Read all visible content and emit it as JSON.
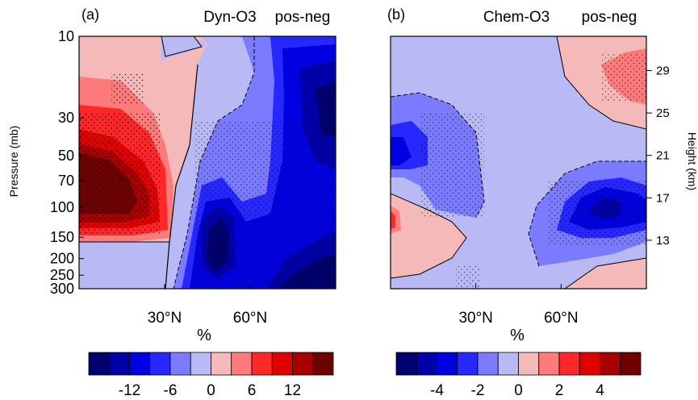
{
  "chart_data": [
    {
      "type": "heatmap",
      "panel_label": "(a)",
      "title": "Dyn-O3",
      "subtitle": "pos-neg",
      "ylabel": "Pressure (mb)",
      "xticks": [
        "30°N",
        "60°N"
      ],
      "xtick_values": [
        30,
        60
      ],
      "xlim": [
        0,
        90
      ],
      "yscale": "log",
      "ylim": [
        300,
        10
      ],
      "yticks": [
        "10",
        "30",
        "50",
        "70",
        "100",
        "150",
        "200",
        "250",
        "300"
      ],
      "ytick_values": [
        10,
        30,
        50,
        70,
        100,
        150,
        200,
        250,
        300
      ],
      "colorbar": {
        "label": "%",
        "tick_labels": [
          "-12",
          "-6",
          "0",
          "6",
          "12"
        ],
        "tick_values": [
          -12,
          -6,
          0,
          6,
          12
        ],
        "bin_edges": [
          -15,
          -12,
          -9,
          -6,
          -3,
          0,
          3,
          6,
          9,
          12,
          15
        ],
        "colors": [
          "#00006e",
          "#0000a8",
          "#0000e0",
          "#2727ff",
          "#7b7bff",
          "#b9b9f5",
          "#f5b9b9",
          "#ff7b7b",
          "#ff2727",
          "#e00000",
          "#a80000",
          "#6e0000"
        ]
      },
      "contour_regions": [
        {
          "lat": [
            0,
            28
          ],
          "p": [
            300,
            160
          ],
          "value": -3
        },
        {
          "lat": [
            0,
            30
          ],
          "p": [
            150,
            30
          ],
          "value": 10
        },
        {
          "lat": [
            0,
            20
          ],
          "p": [
            100,
            50
          ],
          "value": 15
        },
        {
          "lat": [
            0,
            30
          ],
          "p": [
            30,
            10
          ],
          "value": 3
        },
        {
          "lat": [
            30,
            48
          ],
          "p": [
            300,
            10
          ],
          "value": -2
        },
        {
          "lat": [
            40,
            55
          ],
          "p": [
            300,
            100
          ],
          "value": -13
        },
        {
          "lat": [
            60,
            90
          ],
          "p": [
            300,
            150
          ],
          "value": -12
        },
        {
          "lat": [
            70,
            90
          ],
          "p": [
            50,
            10
          ],
          "value": -12
        }
      ]
    },
    {
      "type": "heatmap",
      "panel_label": "(b)",
      "title": "Chem-O3",
      "subtitle": "pos-neg",
      "ylabel": "Height (km)",
      "xticks": [
        "30°N",
        "60°N"
      ],
      "xtick_values": [
        30,
        60
      ],
      "xlim": [
        0,
        90
      ],
      "y2ticks": [
        "29",
        "25",
        "21",
        "17",
        "13"
      ],
      "y2tick_values": [
        29,
        25,
        21,
        17,
        13
      ],
      "colorbar": {
        "label": "%",
        "tick_labels": [
          "-4",
          "-2",
          "0",
          "2",
          "4"
        ],
        "tick_values": [
          -4,
          -2,
          0,
          2,
          4
        ],
        "bin_edges": [
          -5,
          -4,
          -3,
          -2,
          -1,
          0,
          1,
          2,
          3,
          4,
          5
        ],
        "colors": [
          "#00006e",
          "#0000a8",
          "#0000e0",
          "#2727ff",
          "#7b7bff",
          "#b9b9f5",
          "#f5b9b9",
          "#ff7b7b",
          "#ff2727",
          "#e00000",
          "#a80000",
          "#6e0000"
        ]
      },
      "contour_regions": [
        {
          "lat": [
            0,
            90
          ],
          "p": [
            300,
            10
          ],
          "value": -0.5
        },
        {
          "lat": [
            0,
            25
          ],
          "p": [
            70,
            20
          ],
          "value": -1.5
        },
        {
          "lat": [
            0,
            8
          ],
          "p": [
            50,
            35
          ],
          "value": -2.5
        },
        {
          "lat": [
            55,
            90
          ],
          "p": [
            200,
            60
          ],
          "value": -1.5
        },
        {
          "lat": [
            65,
            88
          ],
          "p": [
            150,
            70
          ],
          "value": -3
        },
        {
          "lat": [
            70,
            90
          ],
          "p": [
            30,
            10
          ],
          "value": 1
        },
        {
          "lat": [
            82,
            90
          ],
          "p": [
            30,
            15
          ],
          "value": 2
        },
        {
          "lat": [
            0,
            30
          ],
          "p": [
            250,
            100
          ],
          "value": 1
        },
        {
          "lat": [
            0,
            3
          ],
          "p": [
            150,
            100
          ],
          "value": 2.5
        }
      ]
    }
  ]
}
